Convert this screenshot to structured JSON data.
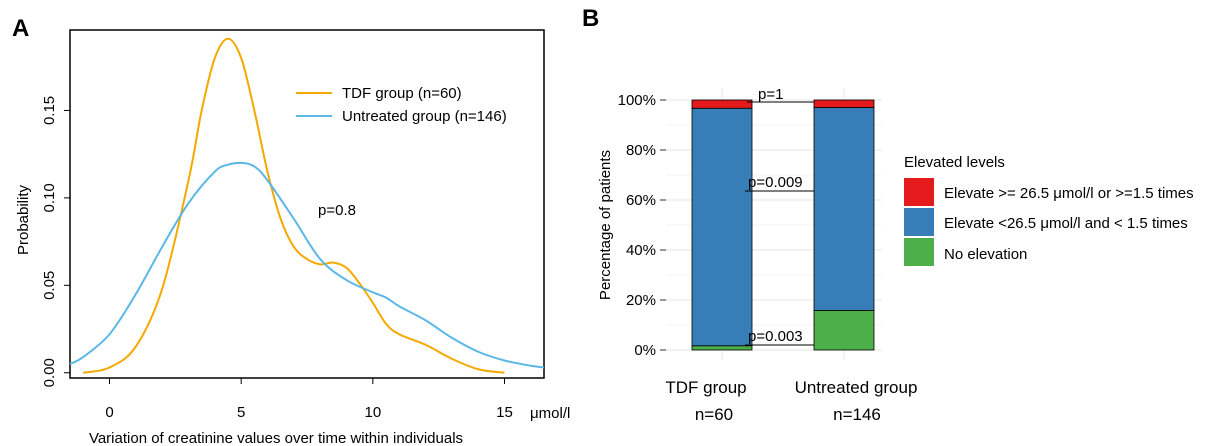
{
  "colors": {
    "tdf": "#f5a800",
    "untreated": "#5cb8e6",
    "elevate_high": "#e41a1c",
    "elevate_mid": "#377eb8",
    "no_elevation": "#4daf4a",
    "grid": "#ebebeb"
  },
  "panel_a": {
    "letter": "A",
    "ylabel": "Probability",
    "xlabel": "Variation of creatinine values over time within individuals",
    "unit": "μmol/l",
    "p_value": "p=0.8",
    "legend": [
      "TDF group (n=60)",
      "Untreated group (n=146)"
    ]
  },
  "panel_b": {
    "letter": "B",
    "ylabel": "Percentage of patients",
    "legend_title": "Elevated levels",
    "legend": [
      "Elevate >= 26.5 μmol/l or >=1.5 times",
      "Elevate <26.5 μmol/l and < 1.5 times",
      "No elevation"
    ],
    "groups": [
      {
        "name": "TDF group",
        "n": "n=60"
      },
      {
        "name": "Untreated group",
        "n": "n=146"
      }
    ],
    "pvalues": [
      "p=1",
      "p=0.009",
      "p=0.003"
    ]
  },
  "chart_data": [
    {
      "type": "line",
      "title": "",
      "xlabel": "Variation of creatinine values over time within individuals",
      "ylabel": "Probability",
      "xlim": [
        -1.5,
        16.5
      ],
      "ylim": [
        -0.003,
        0.196
      ],
      "xticks": [
        0,
        5,
        10,
        15
      ],
      "yticks": [
        "0.00",
        "0.05",
        "0.10",
        "0.15"
      ],
      "legend_position": "top-right",
      "series": [
        {
          "name": "TDF group (n=60)",
          "x": [
            -1,
            0,
            1,
            2,
            3,
            3.5,
            4,
            4.5,
            5,
            5.5,
            6,
            6.5,
            7,
            7.5,
            8,
            8.5,
            9,
            9.5,
            10,
            10.5,
            11,
            12,
            13,
            14,
            15
          ],
          "y": [
            0.0,
            0.003,
            0.015,
            0.048,
            0.11,
            0.15,
            0.18,
            0.191,
            0.18,
            0.15,
            0.115,
            0.088,
            0.072,
            0.065,
            0.062,
            0.063,
            0.06,
            0.051,
            0.04,
            0.028,
            0.022,
            0.016,
            0.008,
            0.002,
            0.0
          ]
        },
        {
          "name": "Untreated group (n=146)",
          "x": [
            -1.5,
            -1,
            0,
            1,
            2,
            3,
            4,
            4.5,
            5,
            5.5,
            6,
            7,
            8,
            9,
            10,
            10.5,
            11,
            12,
            13,
            14,
            15,
            16,
            16.5
          ],
          "y": [
            0.005,
            0.009,
            0.022,
            0.045,
            0.072,
            0.097,
            0.115,
            0.119,
            0.12,
            0.118,
            0.11,
            0.088,
            0.065,
            0.053,
            0.046,
            0.043,
            0.038,
            0.03,
            0.02,
            0.012,
            0.007,
            0.004,
            0.003
          ]
        }
      ],
      "annotations": [
        "p=0.8"
      ]
    },
    {
      "type": "bar",
      "title": "",
      "xlabel": "",
      "ylabel": "Percentage of patients",
      "ylim": [
        0,
        100
      ],
      "yticks": [
        "0%",
        "20%",
        "40%",
        "60%",
        "80%",
        "100%"
      ],
      "categories": [
        "TDF group",
        "Untreated group"
      ],
      "legend_title": "Elevated levels",
      "legend_position": "right",
      "stacked": true,
      "series": [
        {
          "name": "No elevation",
          "values": [
            1.7,
            15.8
          ]
        },
        {
          "name": "Elevate <26.5 μmol/l and < 1.5 times",
          "values": [
            95.0,
            81.2
          ]
        },
        {
          "name": "Elevate >= 26.5 μmol/l or >=1.5 times",
          "values": [
            3.3,
            3.0
          ]
        }
      ],
      "annotations": [
        "p=1",
        "p=0.009",
        "p=0.003"
      ]
    }
  ]
}
